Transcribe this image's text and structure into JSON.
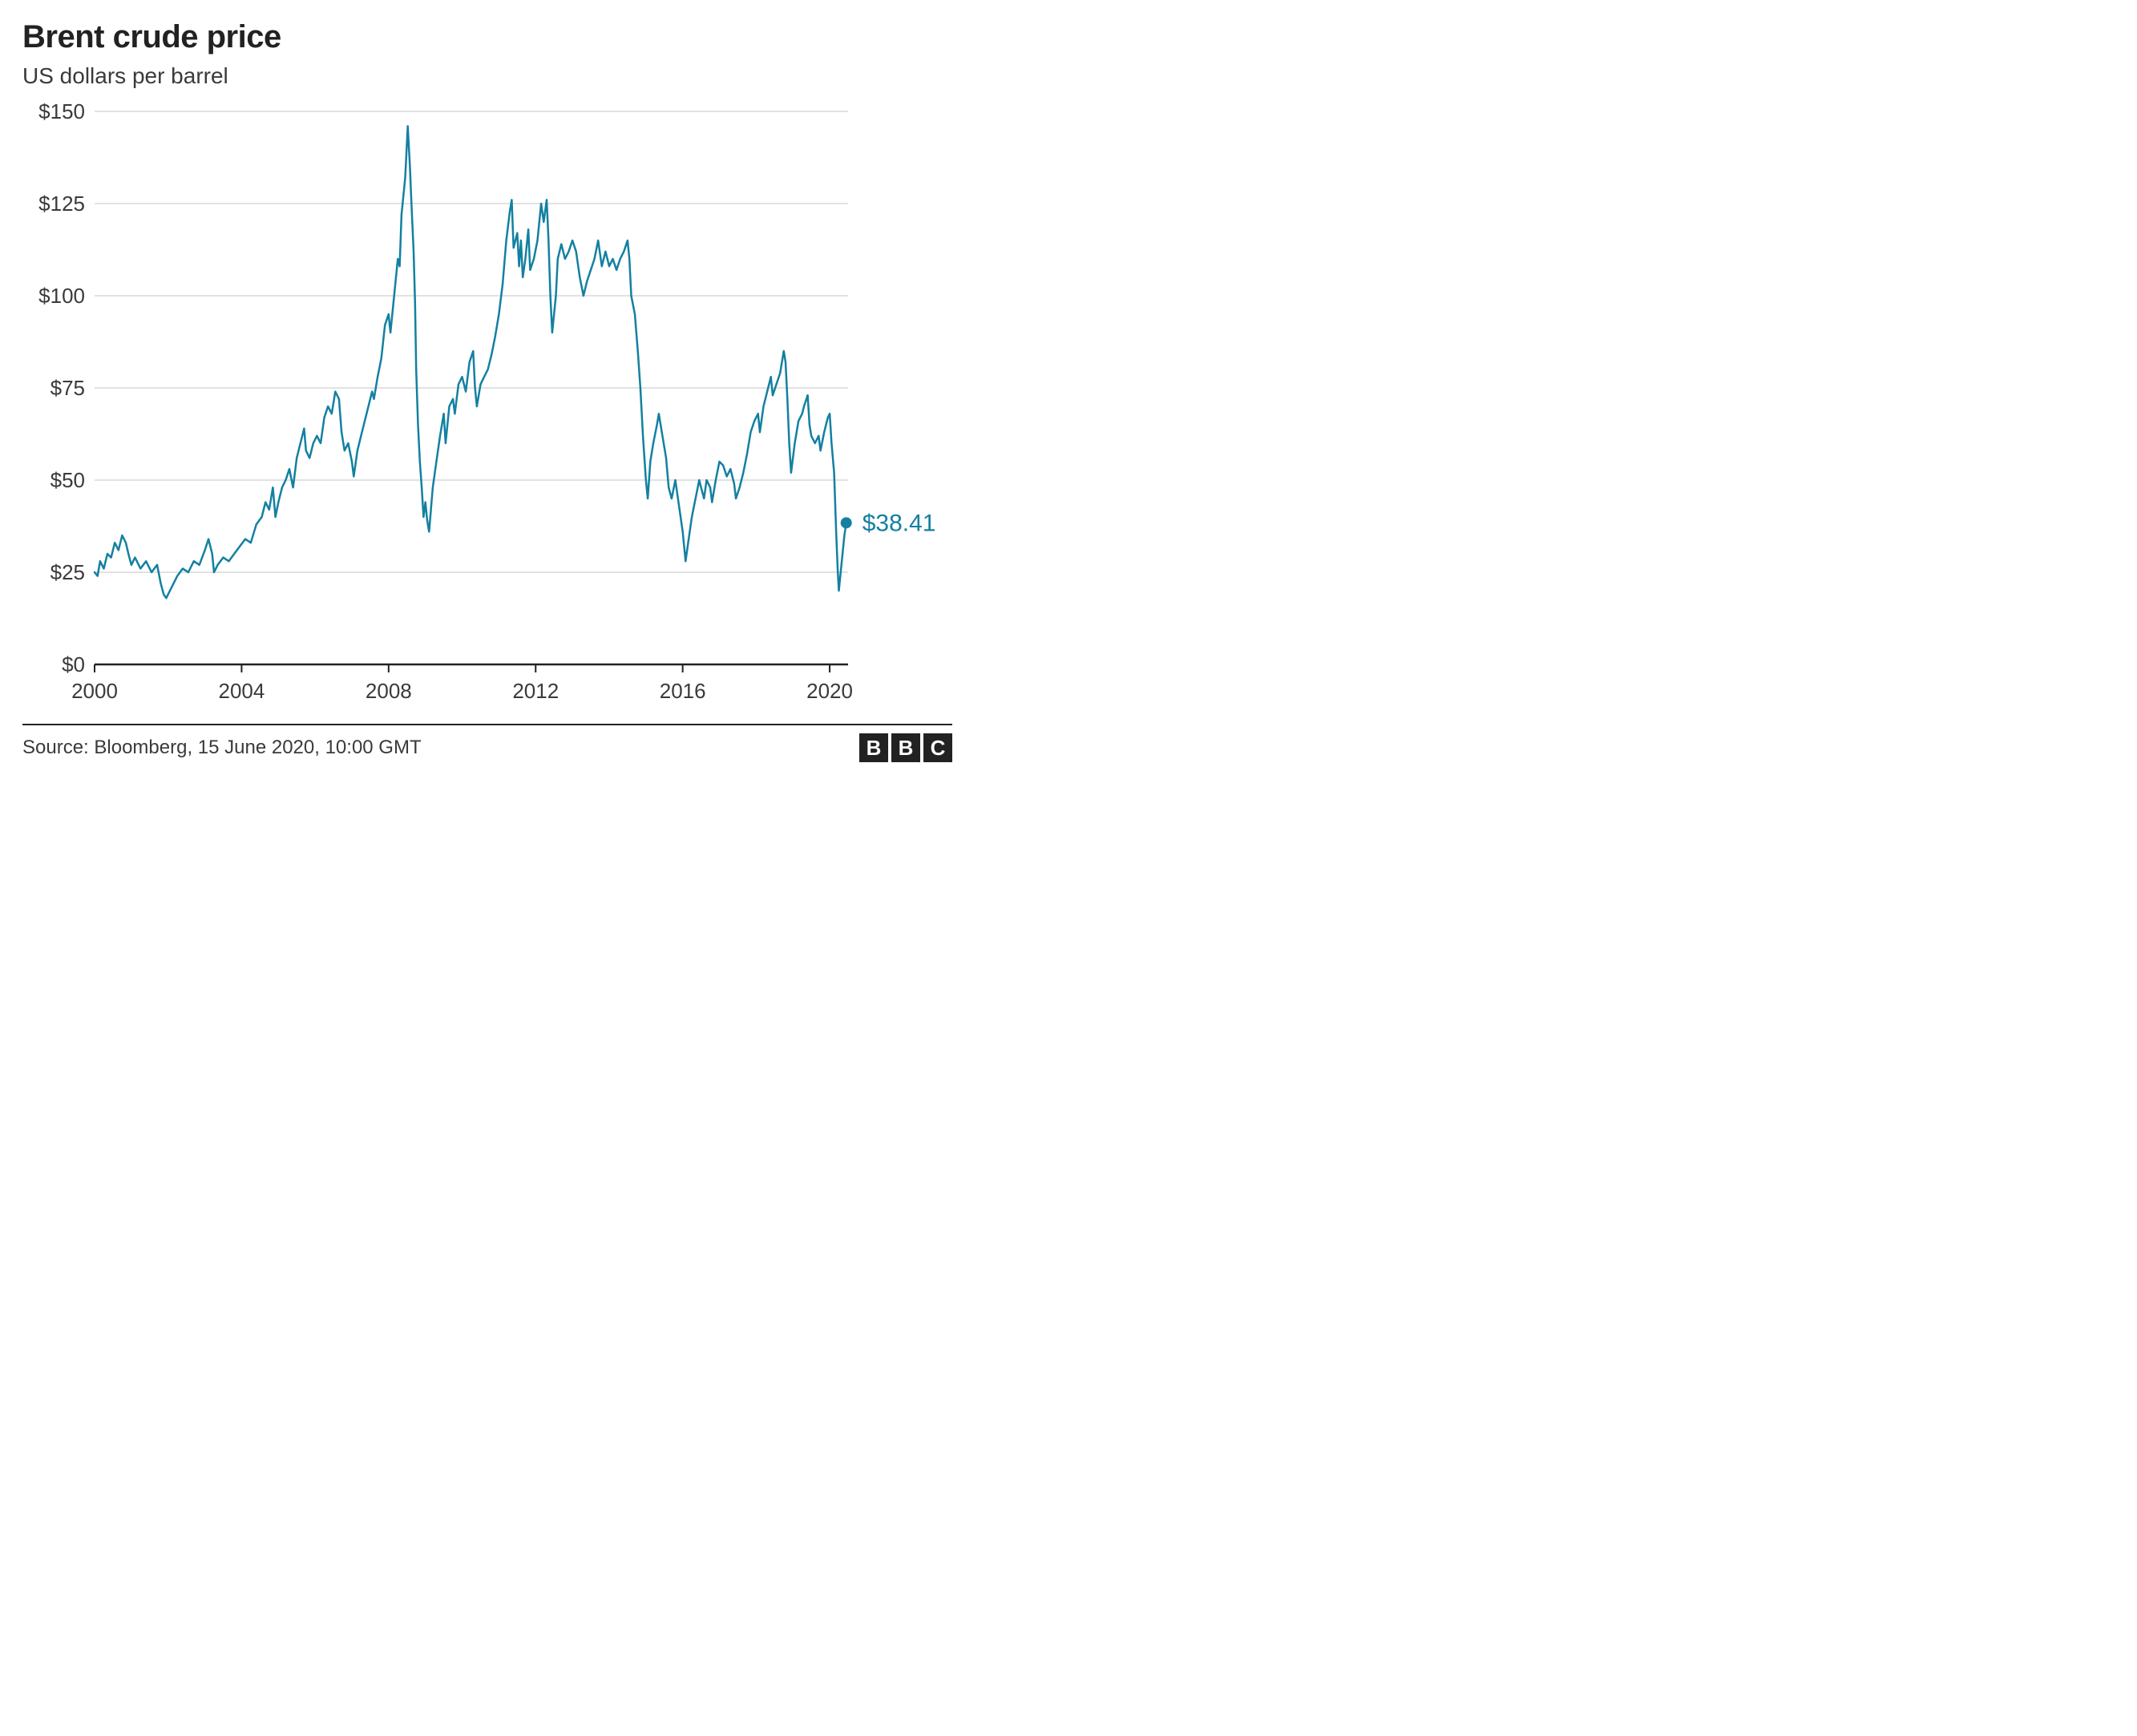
{
  "title": "Brent crude price",
  "subtitle": "US dollars per barrel",
  "source": "Source: Bloomberg, 15 June 2020, 10:00 GMT",
  "logo_letters": [
    "B",
    "B",
    "C"
  ],
  "chart": {
    "type": "line",
    "line_color": "#1380a1",
    "line_width": 2.5,
    "end_marker_radius": 7,
    "background_color": "#ffffff",
    "grid_color": "#d9d9d9",
    "axis_color": "#222222",
    "label_color": "#3a3a3a",
    "tick_fontsize": 26,
    "x": {
      "min": 2000,
      "max": 2020.5,
      "ticks": [
        2000,
        2004,
        2008,
        2012,
        2016,
        2020
      ]
    },
    "y": {
      "min": 0,
      "max": 150,
      "ticks": [
        0,
        25,
        50,
        75,
        100,
        125,
        150
      ],
      "tick_labels": [
        "$0",
        "$25",
        "$50",
        "$75",
        "$100",
        "$125",
        "$150"
      ]
    },
    "callout": {
      "label": "$38.41",
      "value": 38.41,
      "x": 2020.45,
      "color": "#1380a1"
    },
    "series": [
      [
        2000.0,
        25.0
      ],
      [
        2000.08,
        24.0
      ],
      [
        2000.15,
        28.0
      ],
      [
        2000.25,
        26.0
      ],
      [
        2000.35,
        30.0
      ],
      [
        2000.45,
        29.0
      ],
      [
        2000.55,
        33.0
      ],
      [
        2000.65,
        31.0
      ],
      [
        2000.75,
        35.0
      ],
      [
        2000.85,
        33.0
      ],
      [
        2000.92,
        30.0
      ],
      [
        2001.0,
        27.0
      ],
      [
        2001.1,
        29.0
      ],
      [
        2001.25,
        26.0
      ],
      [
        2001.4,
        28.0
      ],
      [
        2001.55,
        25.0
      ],
      [
        2001.7,
        27.0
      ],
      [
        2001.8,
        22.0
      ],
      [
        2001.88,
        19.0
      ],
      [
        2001.95,
        18.0
      ],
      [
        2002.05,
        20.0
      ],
      [
        2002.15,
        22.0
      ],
      [
        2002.25,
        24.0
      ],
      [
        2002.4,
        26.0
      ],
      [
        2002.55,
        25.0
      ],
      [
        2002.7,
        28.0
      ],
      [
        2002.85,
        27.0
      ],
      [
        2003.0,
        31.0
      ],
      [
        2003.1,
        34.0
      ],
      [
        2003.2,
        30.0
      ],
      [
        2003.25,
        25.0
      ],
      [
        2003.35,
        27.0
      ],
      [
        2003.5,
        29.0
      ],
      [
        2003.65,
        28.0
      ],
      [
        2003.8,
        30.0
      ],
      [
        2003.95,
        32.0
      ],
      [
        2004.1,
        34.0
      ],
      [
        2004.25,
        33.0
      ],
      [
        2004.4,
        38.0
      ],
      [
        2004.55,
        40.0
      ],
      [
        2004.65,
        44.0
      ],
      [
        2004.75,
        42.0
      ],
      [
        2004.85,
        48.0
      ],
      [
        2004.92,
        40.0
      ],
      [
        2005.0,
        44.0
      ],
      [
        2005.1,
        48.0
      ],
      [
        2005.2,
        50.0
      ],
      [
        2005.3,
        53.0
      ],
      [
        2005.4,
        48.0
      ],
      [
        2005.5,
        56.0
      ],
      [
        2005.6,
        60.0
      ],
      [
        2005.7,
        64.0
      ],
      [
        2005.75,
        58.0
      ],
      [
        2005.85,
        56.0
      ],
      [
        2005.95,
        60.0
      ],
      [
        2006.05,
        62.0
      ],
      [
        2006.15,
        60.0
      ],
      [
        2006.25,
        67.0
      ],
      [
        2006.35,
        70.0
      ],
      [
        2006.45,
        68.0
      ],
      [
        2006.55,
        74.0
      ],
      [
        2006.65,
        72.0
      ],
      [
        2006.72,
        63.0
      ],
      [
        2006.8,
        58.0
      ],
      [
        2006.9,
        60.0
      ],
      [
        2007.0,
        55.0
      ],
      [
        2007.05,
        51.0
      ],
      [
        2007.15,
        58.0
      ],
      [
        2007.25,
        62.0
      ],
      [
        2007.35,
        66.0
      ],
      [
        2007.45,
        70.0
      ],
      [
        2007.55,
        74.0
      ],
      [
        2007.6,
        72.0
      ],
      [
        2007.7,
        78.0
      ],
      [
        2007.8,
        83.0
      ],
      [
        2007.9,
        92.0
      ],
      [
        2008.0,
        95.0
      ],
      [
        2008.05,
        90.0
      ],
      [
        2008.15,
        100.0
      ],
      [
        2008.25,
        110.0
      ],
      [
        2008.3,
        108.0
      ],
      [
        2008.35,
        122.0
      ],
      [
        2008.45,
        132.0
      ],
      [
        2008.52,
        146.0
      ],
      [
        2008.58,
        135.0
      ],
      [
        2008.62,
        125.0
      ],
      [
        2008.68,
        112.0
      ],
      [
        2008.72,
        98.0
      ],
      [
        2008.75,
        80.0
      ],
      [
        2008.8,
        65.0
      ],
      [
        2008.85,
        55.0
      ],
      [
        2008.9,
        48.0
      ],
      [
        2008.95,
        40.0
      ],
      [
        2009.0,
        44.0
      ],
      [
        2009.05,
        39.0
      ],
      [
        2009.1,
        36.0
      ],
      [
        2009.2,
        48.0
      ],
      [
        2009.3,
        55.0
      ],
      [
        2009.4,
        62.0
      ],
      [
        2009.5,
        68.0
      ],
      [
        2009.55,
        60.0
      ],
      [
        2009.65,
        70.0
      ],
      [
        2009.75,
        72.0
      ],
      [
        2009.8,
        68.0
      ],
      [
        2009.9,
        76.0
      ],
      [
        2010.0,
        78.0
      ],
      [
        2010.1,
        74.0
      ],
      [
        2010.2,
        82.0
      ],
      [
        2010.3,
        85.0
      ],
      [
        2010.35,
        75.0
      ],
      [
        2010.4,
        70.0
      ],
      [
        2010.5,
        76.0
      ],
      [
        2010.6,
        78.0
      ],
      [
        2010.7,
        80.0
      ],
      [
        2010.8,
        84.0
      ],
      [
        2010.9,
        89.0
      ],
      [
        2011.0,
        95.0
      ],
      [
        2011.1,
        103.0
      ],
      [
        2011.2,
        115.0
      ],
      [
        2011.3,
        123.0
      ],
      [
        2011.35,
        126.0
      ],
      [
        2011.4,
        113.0
      ],
      [
        2011.5,
        117.0
      ],
      [
        2011.55,
        108.0
      ],
      [
        2011.6,
        115.0
      ],
      [
        2011.65,
        105.0
      ],
      [
        2011.72,
        110.0
      ],
      [
        2011.8,
        118.0
      ],
      [
        2011.85,
        107.0
      ],
      [
        2011.95,
        110.0
      ],
      [
        2012.05,
        115.0
      ],
      [
        2012.15,
        125.0
      ],
      [
        2012.22,
        120.0
      ],
      [
        2012.3,
        126.0
      ],
      [
        2012.35,
        115.0
      ],
      [
        2012.4,
        100.0
      ],
      [
        2012.45,
        90.0
      ],
      [
        2012.55,
        100.0
      ],
      [
        2012.6,
        110.0
      ],
      [
        2012.7,
        114.0
      ],
      [
        2012.8,
        110.0
      ],
      [
        2012.9,
        112.0
      ],
      [
        2013.0,
        115.0
      ],
      [
        2013.1,
        112.0
      ],
      [
        2013.2,
        105.0
      ],
      [
        2013.3,
        100.0
      ],
      [
        2013.4,
        104.0
      ],
      [
        2013.5,
        107.0
      ],
      [
        2013.6,
        110.0
      ],
      [
        2013.7,
        115.0
      ],
      [
        2013.8,
        108.0
      ],
      [
        2013.9,
        112.0
      ],
      [
        2014.0,
        108.0
      ],
      [
        2014.1,
        110.0
      ],
      [
        2014.2,
        107.0
      ],
      [
        2014.3,
        110.0
      ],
      [
        2014.4,
        112.0
      ],
      [
        2014.5,
        115.0
      ],
      [
        2014.55,
        110.0
      ],
      [
        2014.6,
        100.0
      ],
      [
        2014.7,
        95.0
      ],
      [
        2014.78,
        85.0
      ],
      [
        2014.85,
        75.0
      ],
      [
        2014.92,
        62.0
      ],
      [
        2015.0,
        50.0
      ],
      [
        2015.05,
        45.0
      ],
      [
        2015.12,
        55.0
      ],
      [
        2015.2,
        60.0
      ],
      [
        2015.3,
        65.0
      ],
      [
        2015.35,
        68.0
      ],
      [
        2015.45,
        62.0
      ],
      [
        2015.55,
        56.0
      ],
      [
        2015.62,
        48.0
      ],
      [
        2015.7,
        45.0
      ],
      [
        2015.8,
        50.0
      ],
      [
        2015.9,
        43.0
      ],
      [
        2016.0,
        36.0
      ],
      [
        2016.08,
        28.0
      ],
      [
        2016.15,
        33.0
      ],
      [
        2016.25,
        40.0
      ],
      [
        2016.35,
        45.0
      ],
      [
        2016.45,
        50.0
      ],
      [
        2016.5,
        48.0
      ],
      [
        2016.58,
        45.0
      ],
      [
        2016.65,
        50.0
      ],
      [
        2016.75,
        48.0
      ],
      [
        2016.8,
        44.0
      ],
      [
        2016.9,
        50.0
      ],
      [
        2017.0,
        55.0
      ],
      [
        2017.1,
        54.0
      ],
      [
        2017.2,
        51.0
      ],
      [
        2017.3,
        53.0
      ],
      [
        2017.4,
        49.0
      ],
      [
        2017.45,
        45.0
      ],
      [
        2017.55,
        48.0
      ],
      [
        2017.65,
        52.0
      ],
      [
        2017.75,
        57.0
      ],
      [
        2017.85,
        63.0
      ],
      [
        2017.95,
        66.0
      ],
      [
        2018.05,
        68.0
      ],
      [
        2018.1,
        63.0
      ],
      [
        2018.2,
        70.0
      ],
      [
        2018.3,
        74.0
      ],
      [
        2018.4,
        78.0
      ],
      [
        2018.45,
        73.0
      ],
      [
        2018.55,
        76.0
      ],
      [
        2018.65,
        79.0
      ],
      [
        2018.75,
        85.0
      ],
      [
        2018.8,
        82.0
      ],
      [
        2018.85,
        72.0
      ],
      [
        2018.9,
        60.0
      ],
      [
        2018.95,
        52.0
      ],
      [
        2019.05,
        60.0
      ],
      [
        2019.15,
        66.0
      ],
      [
        2019.25,
        68.0
      ],
      [
        2019.3,
        70.0
      ],
      [
        2019.4,
        73.0
      ],
      [
        2019.45,
        65.0
      ],
      [
        2019.5,
        62.0
      ],
      [
        2019.6,
        60.0
      ],
      [
        2019.7,
        62.0
      ],
      [
        2019.75,
        58.0
      ],
      [
        2019.85,
        63.0
      ],
      [
        2019.95,
        67.0
      ],
      [
        2020.0,
        68.0
      ],
      [
        2020.05,
        60.0
      ],
      [
        2020.12,
        52.0
      ],
      [
        2020.18,
        35.0
      ],
      [
        2020.22,
        25.0
      ],
      [
        2020.25,
        20.0
      ],
      [
        2020.3,
        25.0
      ],
      [
        2020.35,
        30.0
      ],
      [
        2020.4,
        35.0
      ],
      [
        2020.45,
        38.41
      ]
    ]
  }
}
